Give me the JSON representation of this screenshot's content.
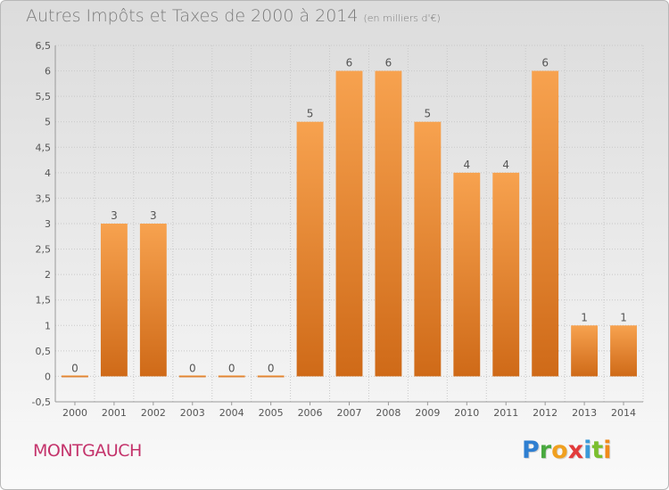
{
  "title": "Autres Impôts et Taxes de 2000 à 2014",
  "subtitle": "(en milliers d'€)",
  "commune": "MONTGAUCH",
  "logo": {
    "letters": [
      {
        "ch": "P",
        "color": "#2f7fd1"
      },
      {
        "ch": "r",
        "color": "#49a93f"
      },
      {
        "ch": "o",
        "color": "#f0a020"
      },
      {
        "ch": "x",
        "color": "#e23b3b"
      },
      {
        "ch": "i",
        "color": "#3a9ad9"
      },
      {
        "ch": "t",
        "color": "#7bbf2e"
      },
      {
        "ch": "i",
        "color": "#f08a1a"
      }
    ]
  },
  "colors": {
    "bar_top": "#f7a24f",
    "bar_bottom": "#cf6a18",
    "grid": "#c8c8c8"
  },
  "chart_data": {
    "type": "bar",
    "categories": [
      "2000",
      "2001",
      "2002",
      "2003",
      "2004",
      "2005",
      "2006",
      "2007",
      "2008",
      "2009",
      "2010",
      "2011",
      "2012",
      "2013",
      "2014"
    ],
    "values": [
      0,
      3,
      3,
      0,
      0,
      0,
      5,
      6,
      6,
      5,
      4,
      4,
      6,
      1,
      1
    ],
    "data_labels": [
      "0",
      "3",
      "3",
      "0",
      "0",
      "0",
      "5",
      "6",
      "6",
      "5",
      "4",
      "4",
      "6",
      "1",
      "1"
    ],
    "yticks": [
      -0.5,
      0,
      0.5,
      1,
      1.5,
      2,
      2.5,
      3,
      3.5,
      4,
      4.5,
      5,
      5.5,
      6,
      6.5
    ],
    "ytick_labels": [
      "-0,5",
      "0",
      "0,5",
      "1",
      "1,5",
      "2",
      "2,5",
      "3",
      "3,5",
      "4",
      "4,5",
      "5",
      "5,5",
      "6",
      "6,5"
    ],
    "ylim": [
      -0.5,
      6.5
    ],
    "grid": true
  }
}
